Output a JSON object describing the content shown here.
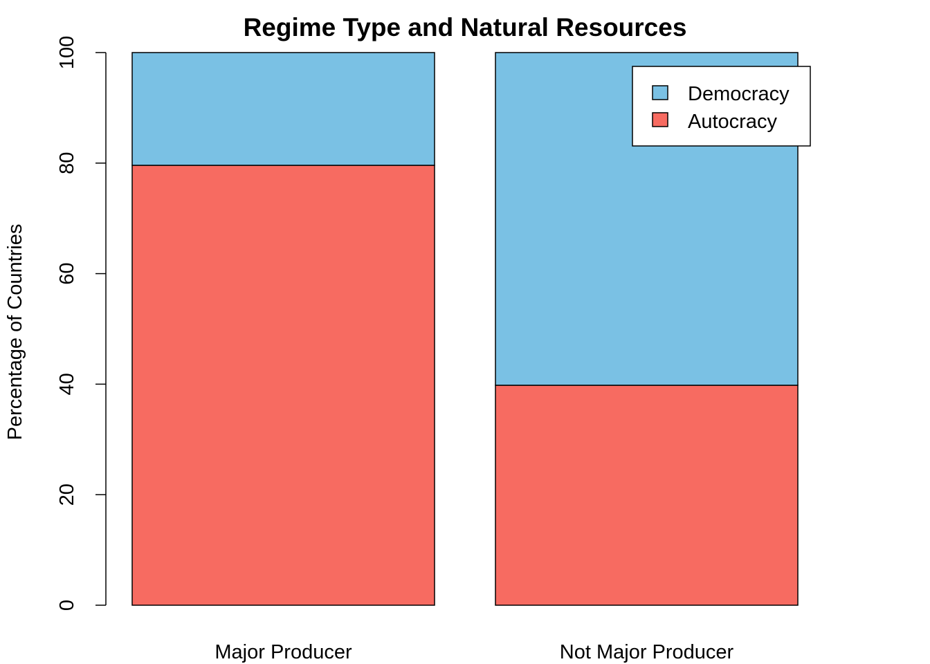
{
  "chart_data": {
    "type": "bar",
    "stacked": true,
    "title": "Regime Type and Natural Resources",
    "xlabel": "",
    "ylabel": "Percentage of Countries",
    "ylim": [
      0,
      100
    ],
    "yticks": [
      0,
      20,
      40,
      60,
      80,
      100
    ],
    "categories": [
      "Major Producer",
      "Not Major Producer"
    ],
    "series": [
      {
        "name": "Autocracy",
        "values": [
          79.6,
          39.8
        ],
        "color": "#F76B61"
      },
      {
        "name": "Democracy",
        "values": [
          20.4,
          60.2
        ],
        "color": "#7AC1E4"
      }
    ],
    "legend": {
      "placement": "top-right",
      "entries": [
        "Democracy",
        "Autocracy"
      ]
    },
    "grid": false
  }
}
